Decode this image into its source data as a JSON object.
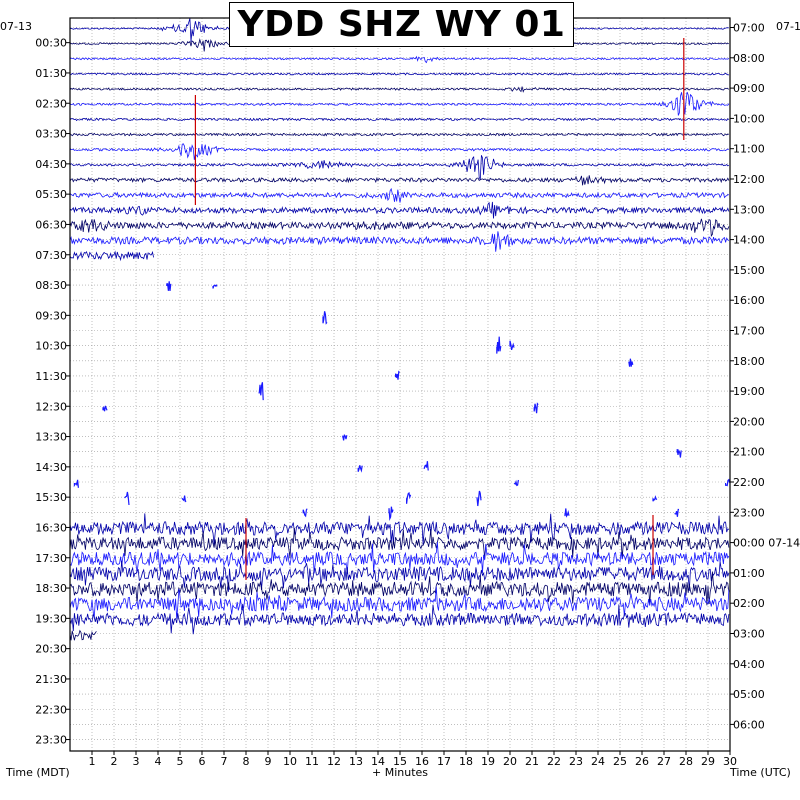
{
  "chart_data": {
    "type": "line",
    "title": "YDD SHZ WY 01",
    "xlabel": "+ Minutes",
    "left_axis_title": "Time (MDT)",
    "right_axis_title": "Time (UTC)",
    "left_date_label": "07-13",
    "right_date_label_top": "07-1",
    "right_date_label_mid": "00:00 07-14",
    "x_ticks": [
      "1",
      "2",
      "3",
      "4",
      "5",
      "6",
      "7",
      "8",
      "9",
      "10",
      "11",
      "12",
      "13",
      "14",
      "15",
      "16",
      "17",
      "18",
      "19",
      "20",
      "21",
      "22",
      "23",
      "24",
      "25",
      "26",
      "27",
      "28",
      "29",
      "30"
    ],
    "xlim": [
      0,
      30
    ],
    "left_ticks": [
      "00:30",
      "01:30",
      "02:30",
      "03:30",
      "04:30",
      "05:30",
      "06:30",
      "07:30",
      "08:30",
      "09:30",
      "10:30",
      "11:30",
      "12:30",
      "13:30",
      "14:30",
      "15:30",
      "16:30",
      "17:30",
      "18:30",
      "19:30",
      "20:30",
      "21:30",
      "22:30",
      "23:30"
    ],
    "right_ticks": [
      "07:00",
      "08:00",
      "09:00",
      "10:00",
      "11:00",
      "12:00",
      "13:00",
      "14:00",
      "15:00",
      "16:00",
      "17:00",
      "18:00",
      "19:00",
      "20:00",
      "21:00",
      "22:00",
      "23:00",
      "",
      "01:00",
      "02:00",
      "03:00",
      "04:00",
      "05:00",
      "06:00"
    ],
    "grid": true,
    "trace_colors": [
      "#0000aa",
      "#000066",
      "#1a1aff"
    ],
    "spike_color": "#cc0000"
  }
}
